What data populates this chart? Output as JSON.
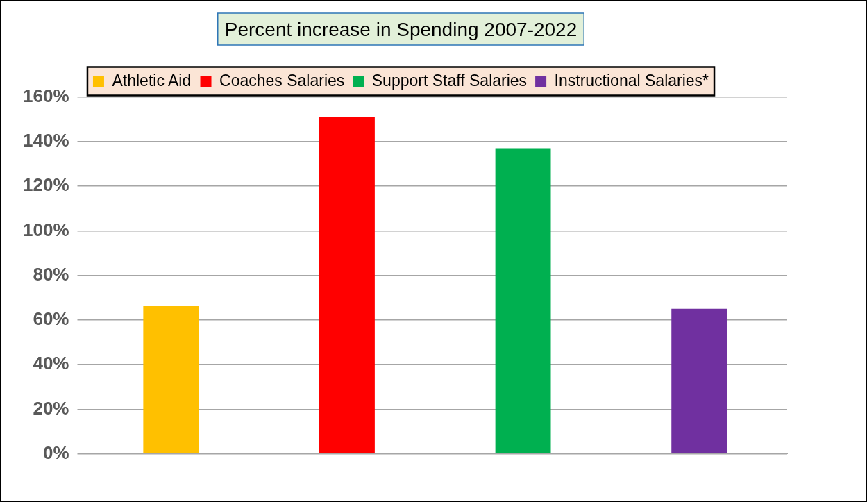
{
  "chart_data": {
    "type": "bar",
    "title": "Percent increase in Spending 2007-2022",
    "categories": [
      null,
      null,
      null,
      null
    ],
    "series": [
      {
        "name": "Athletic Aid",
        "color": "#ffc000",
        "values": [
          66.5,
          null,
          null,
          null
        ]
      },
      {
        "name": "Coaches Salaries",
        "color": "#ff0000",
        "values": [
          null,
          151,
          null,
          null
        ]
      },
      {
        "name": "Support Staff Salaries",
        "color": "#00b050",
        "values": [
          null,
          null,
          137,
          null
        ]
      },
      {
        "name": "Instructional Salaries*",
        "color": "#7030a0",
        "values": [
          null,
          null,
          null,
          65
        ]
      }
    ],
    "ylim": [
      0,
      160
    ],
    "yticks": [
      {
        "value": 0,
        "label": "0%"
      },
      {
        "value": 20,
        "label": "20%"
      },
      {
        "value": 40,
        "label": "40%"
      },
      {
        "value": 60,
        "label": "60%"
      },
      {
        "value": 80,
        "label": "80%"
      },
      {
        "value": 100,
        "label": "100%"
      },
      {
        "value": 120,
        "label": "120%"
      },
      {
        "value": 140,
        "label": "140%"
      },
      {
        "value": 160,
        "label": "160%"
      }
    ],
    "grid": "y",
    "legend": "top"
  }
}
